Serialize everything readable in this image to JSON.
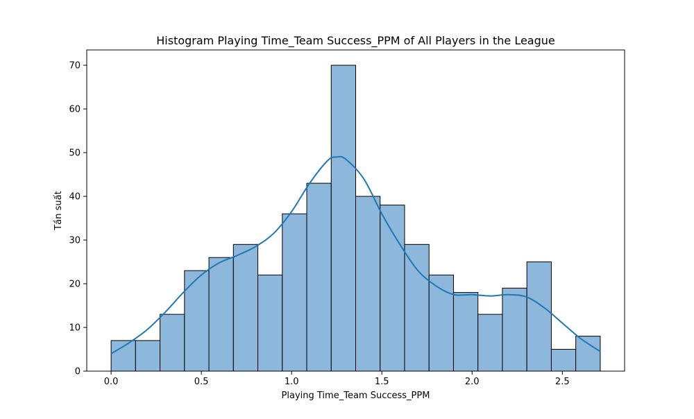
{
  "chart_data": {
    "type": "bar",
    "title": "Histogram Playing Time_Team Success_PPM of All Players in the League",
    "xlabel": "Playing Time_Team Success_PPM",
    "ylabel": "Tần suất",
    "xlim": [
      -0.135,
      2.845
    ],
    "ylim": [
      0,
      73.5
    ],
    "x_ticks": [
      0.0,
      0.5,
      1.0,
      1.5,
      2.0,
      2.5
    ],
    "x_tick_labels": [
      "0.0",
      "0.5",
      "1.0",
      "1.5",
      "2.0",
      "2.5"
    ],
    "y_ticks": [
      0,
      10,
      20,
      30,
      40,
      50,
      60,
      70
    ],
    "y_tick_labels": [
      "0",
      "10",
      "20",
      "30",
      "40",
      "50",
      "60",
      "70"
    ],
    "grid": false,
    "bins": {
      "edges": [
        0.0,
        0.1355,
        0.271,
        0.4065,
        0.542,
        0.6775,
        0.813,
        0.9485,
        1.084,
        1.2195,
        1.355,
        1.4905,
        1.626,
        1.7615,
        1.897,
        2.0325,
        2.168,
        2.3035,
        2.439,
        2.5745,
        2.71
      ],
      "counts": [
        7,
        7,
        13,
        23,
        26,
        29,
        22,
        36,
        43,
        70,
        40,
        38,
        29,
        22,
        18,
        13,
        19,
        25,
        5,
        8
      ]
    },
    "kde": {
      "x": [
        0.0,
        0.1,
        0.2,
        0.3,
        0.4,
        0.5,
        0.6,
        0.7,
        0.8,
        0.9,
        1.0,
        1.1,
        1.2,
        1.25,
        1.3,
        1.4,
        1.5,
        1.6,
        1.7,
        1.8,
        1.9,
        2.0,
        2.1,
        2.2,
        2.3,
        2.4,
        2.5,
        2.6,
        2.71
      ],
      "y": [
        4,
        6.5,
        9.5,
        13.5,
        18,
        22,
        24.8,
        26.5,
        28.5,
        31.5,
        36.5,
        43,
        48.2,
        49,
        48.5,
        44,
        36,
        29,
        23,
        19.5,
        17.5,
        17.5,
        17.2,
        17.5,
        17,
        14.5,
        11,
        7.5,
        4.5
      ]
    },
    "colors": {
      "bar_fill": "#8db8db",
      "bar_edge": "#000000",
      "kde_line": "#1f77b4"
    }
  }
}
